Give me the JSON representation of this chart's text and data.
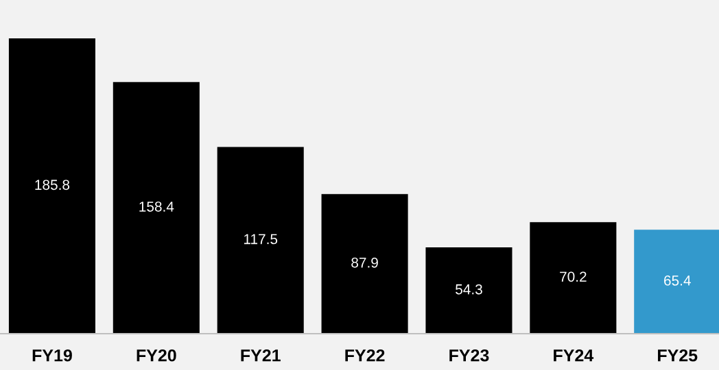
{
  "chart_data": {
    "type": "bar",
    "categories": [
      "FY19",
      "FY20",
      "FY21",
      "FY22",
      "FY23",
      "FY24",
      "FY25"
    ],
    "values": [
      185.8,
      158.4,
      117.5,
      87.9,
      54.3,
      70.2,
      65.4
    ],
    "colors": [
      "#000000",
      "#000000",
      "#000000",
      "#000000",
      "#000000",
      "#000000",
      "#3399cc"
    ],
    "ylim": [
      0,
      210
    ],
    "data_labels": true,
    "grid": false,
    "legend": false,
    "tick_labels": "x"
  }
}
